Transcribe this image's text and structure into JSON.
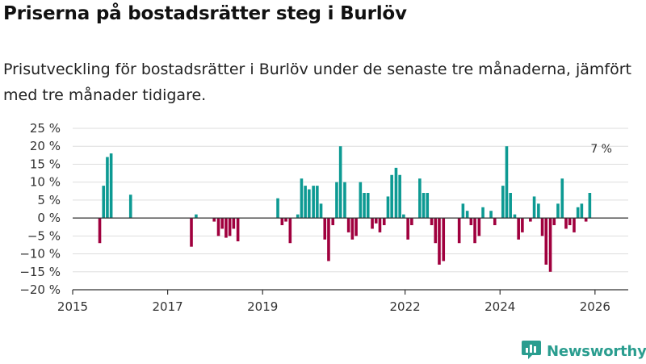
{
  "header": {
    "title": "Priserna på bostadsrätter steg i Burlöv",
    "subtitle": "Prisutveckling för bostadsrätter i Burlöv under de senaste tre månaderna, jämfört med tre månader tidigare."
  },
  "branding": {
    "logo_text": "Newsworthy",
    "logo_icon": "bar-chart-icon"
  },
  "colors": {
    "positive": "#0d9a93",
    "negative": "#a0003e",
    "grid": "#dddddd",
    "axis": "#333333",
    "brand": "#2a9d8f"
  },
  "chart_data": {
    "type": "bar",
    "title": "Priserna på bostadsrätter steg i Burlöv",
    "xlabel": "",
    "ylabel": "",
    "ylim": [
      -20,
      25
    ],
    "xlim": [
      2015,
      2026.7
    ],
    "y_ticks": [
      {
        "value": 25,
        "label": "25 %"
      },
      {
        "value": 20,
        "label": "20 %"
      },
      {
        "value": 15,
        "label": "15 %"
      },
      {
        "value": 10,
        "label": "10 %"
      },
      {
        "value": 5,
        "label": "5 %"
      },
      {
        "value": 0,
        "label": "0 %"
      },
      {
        "value": -5,
        "label": "−5 %"
      },
      {
        "value": -10,
        "label": "−10 %"
      },
      {
        "value": -15,
        "label": "−15 %"
      },
      {
        "value": -20,
        "label": "−20 %"
      }
    ],
    "x_ticks": [
      {
        "value": 2015,
        "label": "2015"
      },
      {
        "value": 2017,
        "label": "2017"
      },
      {
        "value": 2019,
        "label": "2019"
      },
      {
        "value": 2022,
        "label": "2022"
      },
      {
        "value": 2024,
        "label": "2024"
      },
      {
        "value": 2026,
        "label": "2026"
      }
    ],
    "annotation": {
      "label": "7 %",
      "x": 2026.15,
      "y": 7
    },
    "bars": [
      {
        "x": 2015.57,
        "y": -7
      },
      {
        "x": 2015.65,
        "y": 9
      },
      {
        "x": 2015.73,
        "y": 17
      },
      {
        "x": 2015.81,
        "y": 18
      },
      {
        "x": 2016.22,
        "y": 6.5
      },
      {
        "x": 2017.5,
        "y": -8
      },
      {
        "x": 2017.6,
        "y": 1
      },
      {
        "x": 2017.98,
        "y": -1
      },
      {
        "x": 2018.07,
        "y": -5
      },
      {
        "x": 2018.15,
        "y": -3
      },
      {
        "x": 2018.23,
        "y": -5.5
      },
      {
        "x": 2018.31,
        "y": -5
      },
      {
        "x": 2018.39,
        "y": -3
      },
      {
        "x": 2018.48,
        "y": -6.5
      },
      {
        "x": 2019.32,
        "y": 5.5
      },
      {
        "x": 2019.41,
        "y": -2
      },
      {
        "x": 2019.49,
        "y": -1
      },
      {
        "x": 2019.58,
        "y": -7
      },
      {
        "x": 2019.74,
        "y": 1
      },
      {
        "x": 2019.82,
        "y": 11
      },
      {
        "x": 2019.9,
        "y": 9
      },
      {
        "x": 2019.98,
        "y": 8
      },
      {
        "x": 2020.07,
        "y": 9
      },
      {
        "x": 2020.15,
        "y": 9
      },
      {
        "x": 2020.23,
        "y": 4
      },
      {
        "x": 2020.31,
        "y": -6
      },
      {
        "x": 2020.39,
        "y": -12
      },
      {
        "x": 2020.48,
        "y": -2
      },
      {
        "x": 2020.56,
        "y": 10
      },
      {
        "x": 2020.64,
        "y": 20
      },
      {
        "x": 2020.73,
        "y": 10
      },
      {
        "x": 2020.81,
        "y": -4
      },
      {
        "x": 2020.89,
        "y": -6
      },
      {
        "x": 2020.97,
        "y": -5
      },
      {
        "x": 2021.06,
        "y": 10
      },
      {
        "x": 2021.14,
        "y": 7
      },
      {
        "x": 2021.22,
        "y": 7
      },
      {
        "x": 2021.31,
        "y": -3
      },
      {
        "x": 2021.39,
        "y": -1.5
      },
      {
        "x": 2021.47,
        "y": -4
      },
      {
        "x": 2021.56,
        "y": -2
      },
      {
        "x": 2021.64,
        "y": 6
      },
      {
        "x": 2021.72,
        "y": 12
      },
      {
        "x": 2021.81,
        "y": 14
      },
      {
        "x": 2021.89,
        "y": 12
      },
      {
        "x": 2021.97,
        "y": 1
      },
      {
        "x": 2022.06,
        "y": -6
      },
      {
        "x": 2022.14,
        "y": -2
      },
      {
        "x": 2022.31,
        "y": 11
      },
      {
        "x": 2022.39,
        "y": 7
      },
      {
        "x": 2022.47,
        "y": 7
      },
      {
        "x": 2022.56,
        "y": -2
      },
      {
        "x": 2022.64,
        "y": -7
      },
      {
        "x": 2022.72,
        "y": -13
      },
      {
        "x": 2022.81,
        "y": -12
      },
      {
        "x": 2023.14,
        "y": -7
      },
      {
        "x": 2023.22,
        "y": 4
      },
      {
        "x": 2023.31,
        "y": 2
      },
      {
        "x": 2023.39,
        "y": -2
      },
      {
        "x": 2023.47,
        "y": -7
      },
      {
        "x": 2023.56,
        "y": -5
      },
      {
        "x": 2023.64,
        "y": 3
      },
      {
        "x": 2023.81,
        "y": 2
      },
      {
        "x": 2023.89,
        "y": -2
      },
      {
        "x": 2024.06,
        "y": 9
      },
      {
        "x": 2024.14,
        "y": 20
      },
      {
        "x": 2024.22,
        "y": 7
      },
      {
        "x": 2024.31,
        "y": 1
      },
      {
        "x": 2024.39,
        "y": -6
      },
      {
        "x": 2024.47,
        "y": -4
      },
      {
        "x": 2024.64,
        "y": -1
      },
      {
        "x": 2024.72,
        "y": 6
      },
      {
        "x": 2024.81,
        "y": 4
      },
      {
        "x": 2024.89,
        "y": -5
      },
      {
        "x": 2024.97,
        "y": -13
      },
      {
        "x": 2025.06,
        "y": -15
      },
      {
        "x": 2025.14,
        "y": -2
      },
      {
        "x": 2025.22,
        "y": 4
      },
      {
        "x": 2025.31,
        "y": 11
      },
      {
        "x": 2025.39,
        "y": -3
      },
      {
        "x": 2025.47,
        "y": -2
      },
      {
        "x": 2025.56,
        "y": -4
      },
      {
        "x": 2025.64,
        "y": 3
      },
      {
        "x": 2025.72,
        "y": 4
      },
      {
        "x": 2025.81,
        "y": -1
      },
      {
        "x": 2025.89,
        "y": 7
      }
    ]
  }
}
